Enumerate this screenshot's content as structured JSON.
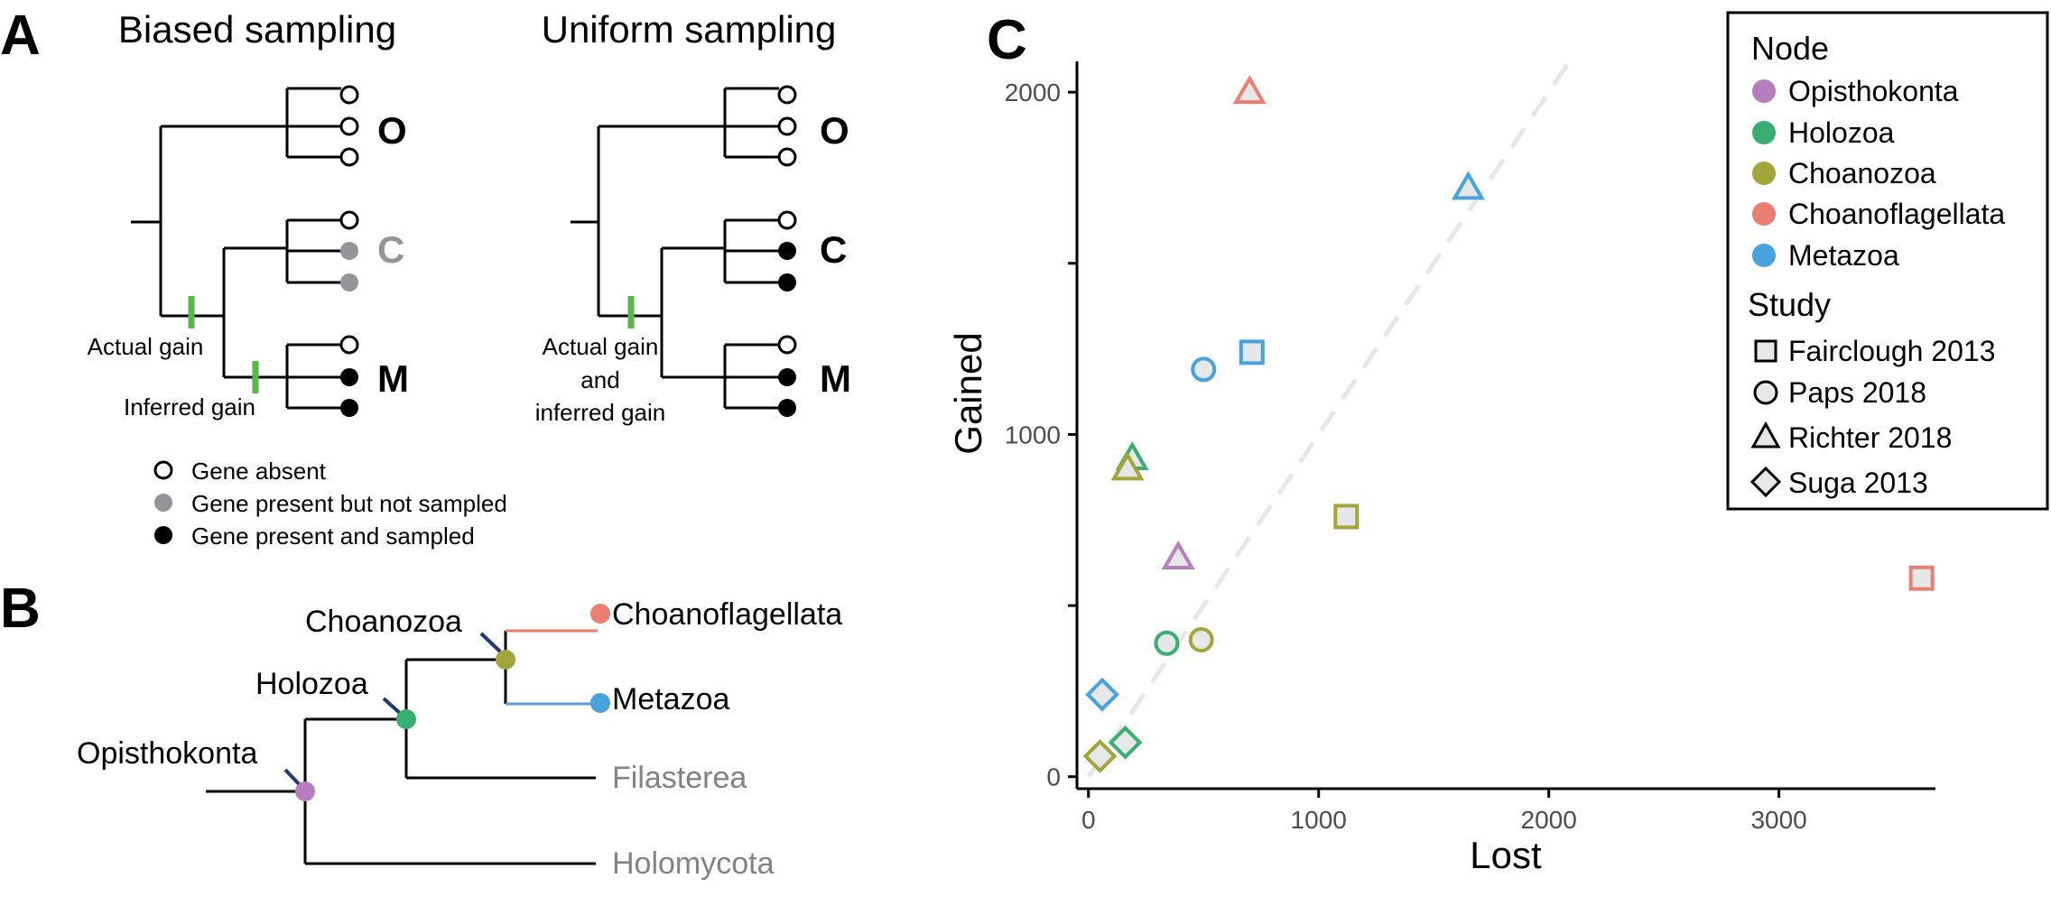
{
  "panel_a": {
    "label": "A",
    "titles": [
      "Biased sampling",
      "Uniform sampling"
    ],
    "clade_labels": [
      "O",
      "C",
      "M"
    ],
    "biased_annotations": [
      "Actual gain",
      "Inferred gain"
    ],
    "uniform_annotation_lines": [
      "Actual gain",
      "and",
      "inferred gain"
    ],
    "legend": [
      {
        "state": "absent",
        "label": "Gene absent"
      },
      {
        "state": "unsampled",
        "label": "Gene present but not sampled"
      },
      {
        "state": "sampled",
        "label": "Gene present and sampled"
      }
    ],
    "colors": {
      "gain": "#5ab54b",
      "unsampled": "#939598",
      "sampled": "#000000"
    }
  },
  "panel_b": {
    "label": "B",
    "nodes": [
      {
        "name": "Opisthokonta",
        "color": "#b77dbd"
      },
      {
        "name": "Holozoa",
        "color": "#3aad73"
      },
      {
        "name": "Choanozoa",
        "color": "#a2a63a"
      },
      {
        "name": "Choanoflagellata",
        "color": "#ea7e70"
      },
      {
        "name": "Metazoa",
        "color": "#46a3de"
      }
    ],
    "outgroups": [
      "Filasterea",
      "Holomycota"
    ],
    "outgroup_color": "#808285"
  },
  "panel_c": {
    "label": "C",
    "chart_data": {
      "type": "scatter",
      "xlabel": "Lost",
      "ylabel": "Gained",
      "xlim": [
        -50,
        3680
      ],
      "ylim": [
        -35,
        2090
      ],
      "x_ticks": [
        0,
        1000,
        2000,
        3000
      ],
      "y_ticks_labeled": [
        0,
        1000,
        2000
      ],
      "y_ticks_minor": [
        500,
        1500
      ],
      "reference_line": {
        "type": "identity",
        "from": 0,
        "to": 2100
      },
      "legend": {
        "node_title": "Node",
        "study_title": "Study",
        "nodes": [
          {
            "name": "Opisthokonta",
            "color": "#b77dbd"
          },
          {
            "name": "Holozoa",
            "color": "#3aad73"
          },
          {
            "name": "Choanozoa",
            "color": "#a2a63a"
          },
          {
            "name": "Choanoflagellata",
            "color": "#ea7e70"
          },
          {
            "name": "Metazoa",
            "color": "#46a3de"
          }
        ],
        "studies": [
          {
            "name": "Fairclough 2013",
            "shape": "square"
          },
          {
            "name": "Paps 2018",
            "shape": "circle"
          },
          {
            "name": "Richter 2018",
            "shape": "triangle"
          },
          {
            "name": "Suga 2013",
            "shape": "diamond"
          }
        ]
      },
      "points": [
        {
          "node": "Choanoflagellata",
          "study": "Richter 2018",
          "x": 700,
          "y": 2000
        },
        {
          "node": "Metazoa",
          "study": "Richter 2018",
          "x": 1650,
          "y": 1720
        },
        {
          "node": "Metazoa",
          "study": "Fairclough 2013",
          "x": 710,
          "y": 1240
        },
        {
          "node": "Metazoa",
          "study": "Paps 2018",
          "x": 500,
          "y": 1190
        },
        {
          "node": "Holozoa",
          "study": "Richter 2018",
          "x": 190,
          "y": 930
        },
        {
          "node": "Choanozoa",
          "study": "Richter 2018",
          "x": 170,
          "y": 900
        },
        {
          "node": "Choanozoa",
          "study": "Fairclough 2013",
          "x": 1120,
          "y": 760
        },
        {
          "node": "Opisthokonta",
          "study": "Richter 2018",
          "x": 390,
          "y": 640
        },
        {
          "node": "Choanoflagellata",
          "study": "Fairclough 2013",
          "x": 3620,
          "y": 580
        },
        {
          "node": "Choanozoa",
          "study": "Paps 2018",
          "x": 490,
          "y": 400
        },
        {
          "node": "Holozoa",
          "study": "Paps 2018",
          "x": 340,
          "y": 390
        },
        {
          "node": "Metazoa",
          "study": "Suga 2013",
          "x": 60,
          "y": 240
        },
        {
          "node": "Holozoa",
          "study": "Suga 2013",
          "x": 160,
          "y": 100
        },
        {
          "node": "Choanozoa",
          "study": "Suga 2013",
          "x": 50,
          "y": 60
        }
      ]
    }
  }
}
